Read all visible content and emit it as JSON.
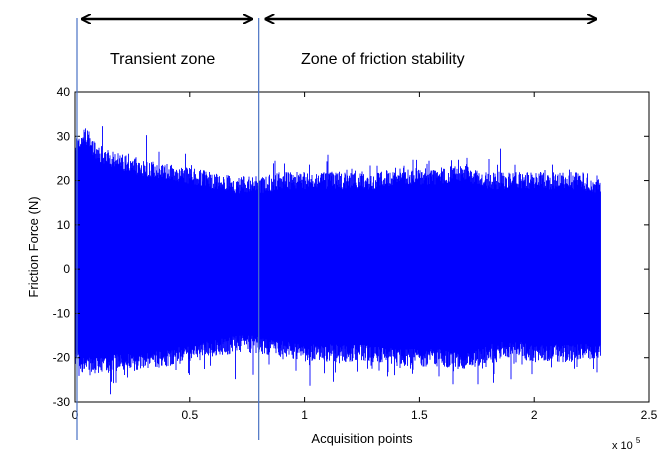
{
  "chart_data": {
    "type": "line",
    "xlabel": "Acquisition points",
    "ylabel": "Friction Force (N)",
    "xlim": [
      0,
      2.5
    ],
    "ylim": [
      -30,
      40
    ],
    "x_ticks": [
      0,
      0.5,
      1,
      1.5,
      2,
      2.5
    ],
    "x_tick_labels": [
      "0",
      "0.5",
      "1",
      "1.5",
      "2",
      "2.5"
    ],
    "y_ticks": [
      -30,
      -20,
      -10,
      0,
      10,
      20,
      30,
      40
    ],
    "y_tick_labels": [
      "-30",
      "-20",
      "-10",
      "0",
      "10",
      "20",
      "30",
      "40"
    ],
    "x_multiplier_base": "x 10",
    "x_multiplier_exp": "5",
    "grid": false,
    "series_color": "#0000ff",
    "annotation_color": "#4a72c4",
    "data_x_end": 2.29,
    "envelope": {
      "x": [
        0,
        0.05,
        0.1,
        0.2,
        0.3,
        0.4,
        0.5,
        0.6,
        0.7,
        0.8,
        0.9,
        1.0,
        1.1,
        1.2,
        1.3,
        1.4,
        1.5,
        1.6,
        1.7,
        1.8,
        1.9,
        2.0,
        2.1,
        2.2,
        2.29
      ],
      "upper": [
        30,
        32,
        28,
        26,
        25,
        24,
        23,
        22,
        21,
        21,
        22,
        22,
        22,
        22,
        22,
        23,
        23,
        23,
        24,
        22,
        22,
        22,
        22,
        22,
        21
      ],
      "lower": [
        -22,
        -24,
        -24,
        -23,
        -23,
        -22,
        -21,
        -20,
        -19,
        -19,
        -20,
        -21,
        -21,
        -21,
        -21,
        -22,
        -22,
        -22,
        -23,
        -21,
        -20,
        -21,
        -21,
        -21,
        -20
      ]
    },
    "vertical_markers": [
      0.0,
      0.8
    ],
    "zones": [
      {
        "label": "Transient zone",
        "x_start": 0.03,
        "x_end": 0.77
      },
      {
        "label": "Zone of friction stability",
        "x_start": 0.83,
        "x_end": 2.27
      }
    ]
  }
}
